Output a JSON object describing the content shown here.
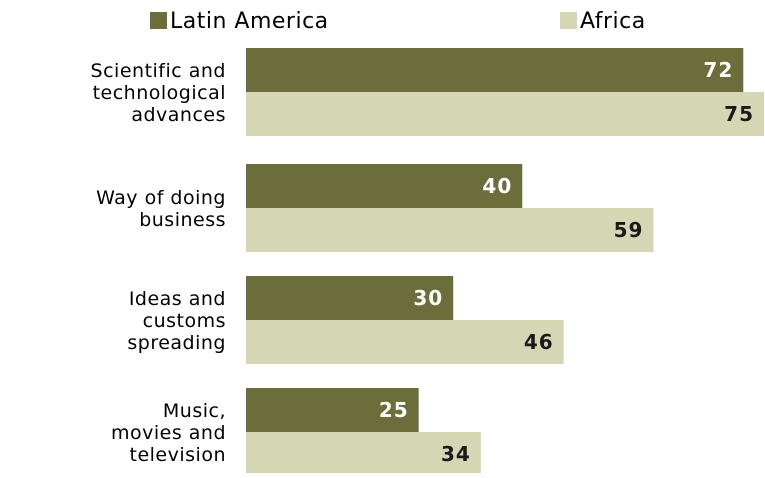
{
  "chart_data": {
    "type": "bar",
    "orientation": "horizontal",
    "categories": [
      [
        "Scientific and",
        "technological",
        "advances"
      ],
      [
        "Way of doing",
        "business"
      ],
      [
        "Ideas and",
        "customs",
        "spreading"
      ],
      [
        "Music,",
        "movies and",
        "television"
      ]
    ],
    "series": [
      {
        "name": "Latin America",
        "color": "#6b6e3a",
        "label_color": "#ffffff",
        "values": [
          72,
          40,
          30,
          25
        ]
      },
      {
        "name": "Africa",
        "color": "#d4d6b4",
        "label_color": "#1a1a1a",
        "values": [
          75,
          59,
          46,
          34
        ]
      }
    ],
    "xlim": [
      0,
      75
    ],
    "grid": false,
    "legend_position": "top",
    "title": "",
    "xlabel": "",
    "ylabel": ""
  }
}
